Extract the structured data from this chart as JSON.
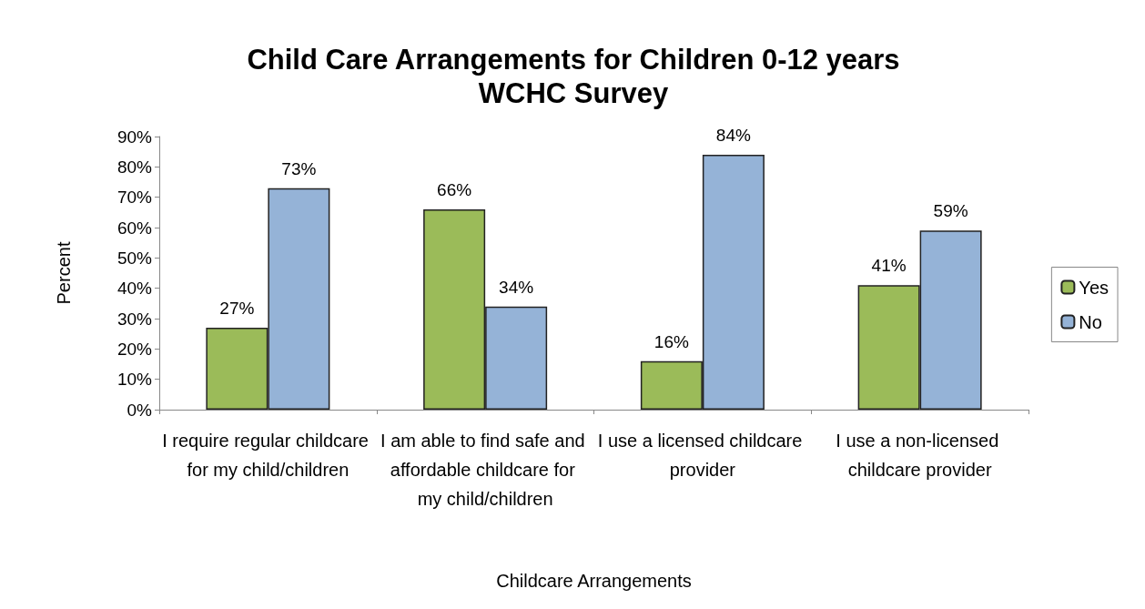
{
  "chart_data": {
    "type": "bar",
    "title": "Child Care Arrangements for Children 0-12 years",
    "subtitle": "WCHC Survey",
    "xlabel": "Childcare Arrangements",
    "ylabel": "Percent",
    "categories": [
      "I require regular childcare for my child/children",
      "I am able to find safe and affordable childcare for my child/children",
      "I use a licensed childcare provider",
      "I use a non-licensed childcare provider"
    ],
    "series": [
      {
        "name": "Yes",
        "color": "#9bbb59",
        "values": [
          27,
          66,
          16,
          41
        ],
        "value_labels": [
          "27%",
          "66%",
          "16%",
          "41%"
        ]
      },
      {
        "name": "No",
        "color": "#95b3d7",
        "values": [
          73,
          34,
          84,
          59
        ],
        "value_labels": [
          "73%",
          "34%",
          "84%",
          "59%"
        ]
      }
    ],
    "ylim": [
      0,
      90
    ],
    "yticks": [
      {
        "value": 0,
        "label": "0%"
      },
      {
        "value": 10,
        "label": "10%"
      },
      {
        "value": 20,
        "label": "20%"
      },
      {
        "value": 30,
        "label": "30%"
      },
      {
        "value": 40,
        "label": "40%"
      },
      {
        "value": 50,
        "label": "50%"
      },
      {
        "value": 60,
        "label": "60%"
      },
      {
        "value": 70,
        "label": "70%"
      },
      {
        "value": 80,
        "label": "80%"
      },
      {
        "value": 90,
        "label": "90%"
      }
    ],
    "grid": false,
    "legend": "right"
  }
}
